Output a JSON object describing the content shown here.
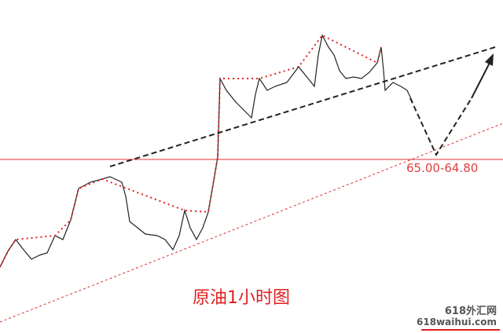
{
  "annotations": {
    "level": "65.00-64.80",
    "title": "原油1小时图"
  },
  "watermark": {
    "name": "618外汇网",
    "url": "618waihui.com"
  }
}
